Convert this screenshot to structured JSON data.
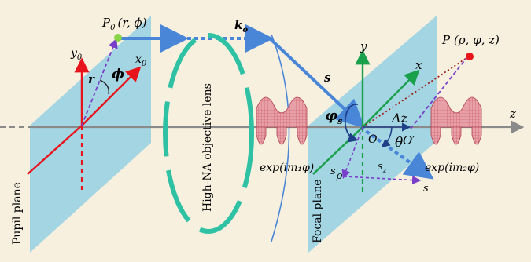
{
  "colors": {
    "background": "#f7f0df",
    "plane": "#9ed3e3",
    "axis_red": "#e8141c",
    "axis_green": "#1aa04a",
    "beam_blue": "#4a86d8",
    "lens_teal": "#2fc1a4",
    "lens_outline": "#4a86d8",
    "dash_purple": "#7a3fc8",
    "dot_red": "#a0201c",
    "point_red": "#e8141c",
    "point_green": "#8ad44a",
    "pattern_pink": "#e07a86",
    "axis_gray": "#8a8a8a"
  },
  "labels": {
    "P0": "P",
    "P0_sub": "0",
    "P0_args": "(r, ϕ)",
    "y0": "y",
    "y0_sub": "0",
    "x0": "x",
    "x0_sub": "0",
    "r": "r",
    "phi": "ϕ",
    "ko": "k",
    "ko_sub": "o",
    "lens": "High-NA objective lens",
    "s_vec": "s",
    "varphi_s": "φ",
    "varphi_s_sub": "s",
    "y": "y",
    "x": "x",
    "P": "P (ρ, φ, z)",
    "z": "z",
    "delta_z": "Δz",
    "O": "O",
    "O_prime": "O′",
    "theta": "θ",
    "s_rho": "s",
    "s_rho_sub": "ρ",
    "s_z": "s",
    "s_z_sub": "z",
    "s_end": "s",
    "exp1": "exp(im₁φ)",
    "exp2": "exp(im₂φ)",
    "pupil_plane": "Pupil plane",
    "focal_plane": "Focal plane"
  }
}
